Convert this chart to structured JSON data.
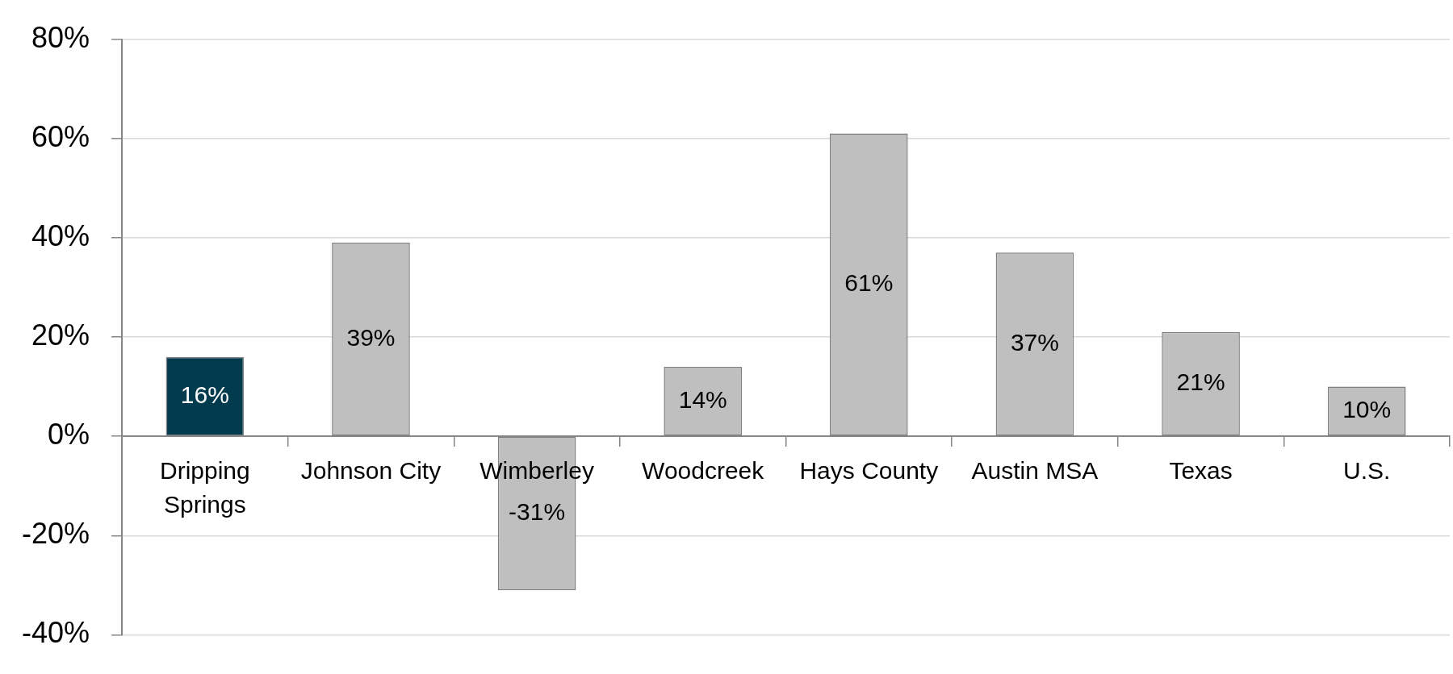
{
  "chart_data": {
    "type": "bar",
    "categories": [
      "Dripping Springs",
      "Johnson City",
      "Wimberley",
      "Woodcreek",
      "Hays County",
      "Austin MSA",
      "Texas",
      "U.S."
    ],
    "values": [
      16,
      39,
      -31,
      14,
      61,
      37,
      21,
      10
    ],
    "value_labels": [
      "16%",
      "39%",
      "-31%",
      "14%",
      "61%",
      "37%",
      "21%",
      "10%"
    ],
    "colors": [
      "#023b4e",
      "#bfbfbf",
      "#bfbfbf",
      "#bfbfbf",
      "#bfbfbf",
      "#bfbfbf",
      "#bfbfbf",
      "#bfbfbf"
    ],
    "ylim": [
      -40,
      80
    ],
    "yticks": [
      {
        "value": -40,
        "label": "-40%"
      },
      {
        "value": -20,
        "label": "-20%"
      },
      {
        "value": 0,
        "label": "0%"
      },
      {
        "value": 20,
        "label": "20%"
      },
      {
        "value": 40,
        "label": "40%"
      },
      {
        "value": 60,
        "label": "60%"
      },
      {
        "value": 80,
        "label": "80%"
      }
    ],
    "grid": "y"
  }
}
